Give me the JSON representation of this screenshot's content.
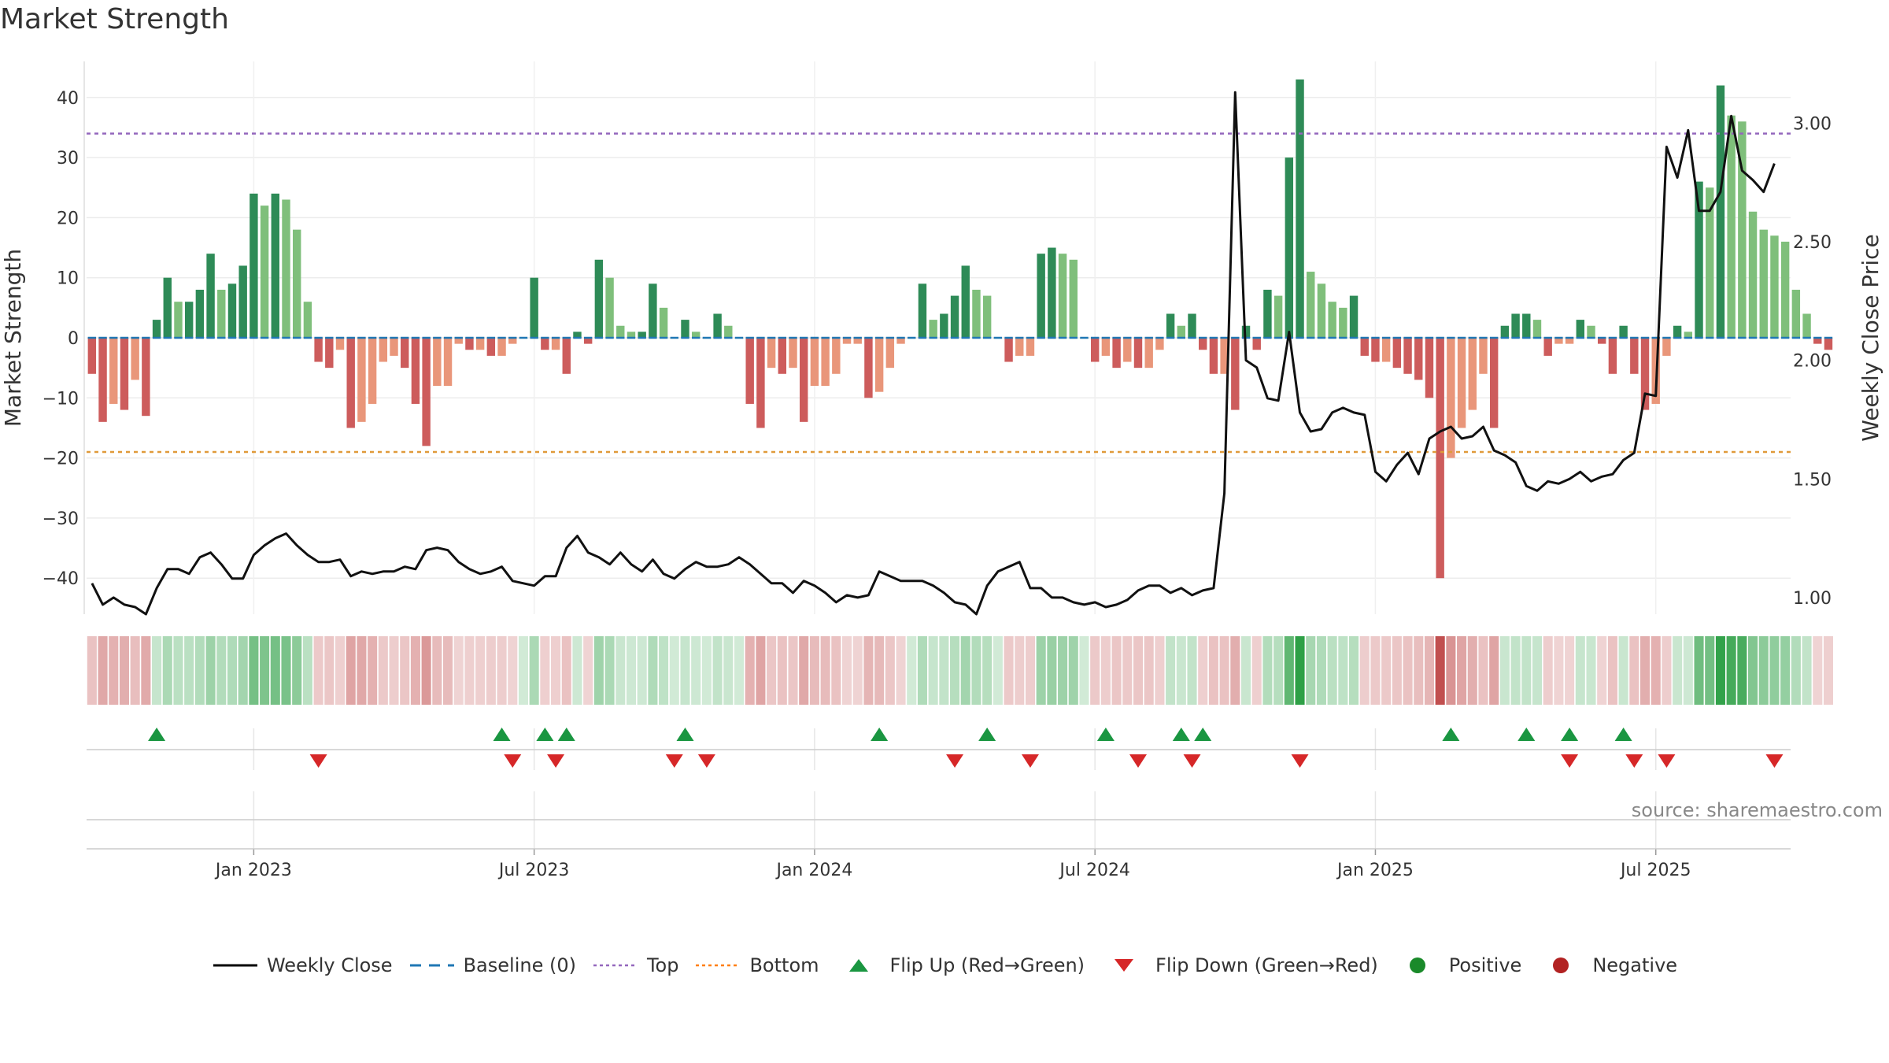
{
  "chart_data": {
    "type": "bar",
    "title": "Market Strength",
    "ylabel_left": "Market Strength",
    "ylabel_right": "Weekly Close Price",
    "ylim_left": [
      -46,
      46
    ],
    "ylim_right": [
      0.93,
      3.26
    ],
    "yticks_left": [
      40,
      30,
      20,
      10,
      0,
      -10,
      -20,
      -30,
      -40
    ],
    "ytick_labels_left": [
      "40",
      "30",
      "20",
      "10",
      "0",
      "−10",
      "−20",
      "−30",
      "−40"
    ],
    "yticks_right": [
      3.0,
      2.5,
      2.0,
      1.5,
      1.0
    ],
    "ytick_labels_right": [
      "3.00",
      "2.50",
      "2.00",
      "1.50",
      "1.00"
    ],
    "x_week_index_range": [
      0,
      157
    ],
    "x_ticks": [
      {
        "label": "Jan 2023",
        "week": 15
      },
      {
        "label": "Jul 2023",
        "week": 41
      },
      {
        "label": "Jan 2024",
        "week": 67
      },
      {
        "label": "Jul 2024",
        "week": 93
      },
      {
        "label": "Jan 2025",
        "week": 119
      },
      {
        "label": "Jul 2025",
        "week": 145
      }
    ],
    "grid": true,
    "legend_position": "bottom",
    "top_level": 34,
    "bottom_level": -19,
    "baseline": 0,
    "strength": [
      -6,
      -14,
      -11,
      -12,
      -7,
      -13,
      3,
      10,
      6,
      6,
      8,
      14,
      8,
      9,
      12,
      24,
      22,
      24,
      23,
      18,
      6,
      -4,
      -5,
      -2,
      -15,
      -14,
      -11,
      -4,
      -3,
      -5,
      -11,
      -18,
      -8,
      -8,
      -1,
      -2,
      -2,
      -3,
      -3,
      -1,
      0,
      10,
      -2,
      -2,
      -6,
      1,
      -1,
      13,
      10,
      2,
      1,
      1,
      9,
      5,
      0,
      3,
      1,
      0,
      4,
      2,
      0,
      -11,
      -15,
      -5,
      -6,
      -5,
      -14,
      -8,
      -8,
      -6,
      -1,
      -1,
      -10,
      -9,
      -5,
      -1,
      0,
      9,
      3,
      4,
      7,
      12,
      8,
      7,
      0,
      -4,
      -3,
      -3,
      14,
      15,
      14,
      13,
      0,
      -4,
      -3,
      -5,
      -4,
      -5,
      -5,
      -2,
      4,
      2,
      4,
      -2,
      -6,
      -6,
      -12,
      2,
      -2,
      8,
      7,
      30,
      43,
      11,
      9,
      6,
      5,
      7,
      -3,
      -4,
      -4,
      -5,
      -6,
      -7,
      -10,
      -40,
      -20,
      -15,
      -12,
      -6,
      -15,
      2,
      4,
      4,
      3,
      -3,
      -1,
      -1,
      3,
      2,
      -1,
      -6,
      2,
      -6,
      -12,
      -11,
      -3,
      2,
      1,
      26,
      25,
      42,
      37,
      36,
      21,
      18,
      17,
      16,
      8,
      4,
      -1,
      -2
    ],
    "weekly_close": [
      1.06,
      0.97,
      1.0,
      0.97,
      0.96,
      0.93,
      1.04,
      1.12,
      1.12,
      1.1,
      1.17,
      1.19,
      1.14,
      1.08,
      1.08,
      1.18,
      1.22,
      1.25,
      1.27,
      1.22,
      1.18,
      1.15,
      1.15,
      1.16,
      1.09,
      1.11,
      1.1,
      1.11,
      1.11,
      1.13,
      1.12,
      1.2,
      1.21,
      1.2,
      1.15,
      1.12,
      1.1,
      1.11,
      1.13,
      1.07,
      1.06,
      1.05,
      1.09,
      1.09,
      1.21,
      1.26,
      1.19,
      1.17,
      1.14,
      1.19,
      1.14,
      1.11,
      1.16,
      1.1,
      1.08,
      1.12,
      1.15,
      1.13,
      1.13,
      1.14,
      1.17,
      1.14,
      1.1,
      1.06,
      1.06,
      1.02,
      1.07,
      1.05,
      1.02,
      0.98,
      1.01,
      1.0,
      1.01,
      1.11,
      1.09,
      1.07,
      1.07,
      1.07,
      1.05,
      1.02,
      0.98,
      0.97,
      0.93,
      1.05,
      1.11,
      1.13,
      1.15,
      1.04,
      1.04,
      1.0,
      1.0,
      0.98,
      0.97,
      0.98,
      0.96,
      0.97,
      0.99,
      1.03,
      1.05,
      1.05,
      1.02,
      1.04,
      1.01,
      1.03,
      1.04,
      1.44,
      3.13,
      2.0,
      1.97,
      1.84,
      1.83,
      2.12,
      1.78,
      1.7,
      1.71,
      1.78,
      1.8,
      1.78,
      1.77,
      1.53,
      1.49,
      1.56,
      1.61,
      1.52,
      1.67,
      1.7,
      1.72,
      1.67,
      1.68,
      1.72,
      1.62,
      1.6,
      1.57,
      1.47,
      1.45,
      1.49,
      1.48,
      1.5,
      1.53,
      1.49,
      1.51,
      1.52,
      1.58,
      1.61,
      1.86,
      1.85,
      2.9,
      2.77,
      2.97,
      2.63,
      2.63,
      2.71,
      3.03,
      2.8,
      2.76,
      2.71,
      2.83
    ],
    "flip_up_weeks": [
      6,
      38,
      42,
      44,
      55,
      73,
      83,
      94,
      101,
      103,
      126,
      133,
      137,
      142
    ],
    "flip_down_weeks": [
      21,
      39,
      43,
      54,
      57,
      80,
      87,
      97,
      102,
      112,
      137,
      143,
      146,
      156
    ],
    "legend": [
      {
        "label": "Weekly Close",
        "marker": "line",
        "color": "#000000"
      },
      {
        "label": "Baseline (0)",
        "marker": "dash",
        "color": "#1f77b4"
      },
      {
        "label": "Top",
        "marker": "dot",
        "color": "#9467bd"
      },
      {
        "label": "Bottom",
        "marker": "dot",
        "color": "#ff7f0e"
      },
      {
        "label": "Flip Up (Red→Green)",
        "marker": "triangle-up",
        "color": "#1a9641"
      },
      {
        "label": "Flip Down (Green→Red)",
        "marker": "triangle-down",
        "color": "#d62728"
      },
      {
        "label": "Positive",
        "marker": "circle",
        "color": "#1a8a2a"
      },
      {
        "label": "Negative",
        "marker": "circle",
        "color": "#b22222"
      }
    ]
  },
  "source_text": "source: sharemaestro.com",
  "colors": {
    "strong_green": "#2e8b57",
    "light_green": "#7fbf7b",
    "strong_red": "#cd5c5c",
    "light_red": "#e9967a",
    "top_line": "#9467bd",
    "bottom_line": "#e09a3a",
    "baseline": "#1f77b4"
  }
}
